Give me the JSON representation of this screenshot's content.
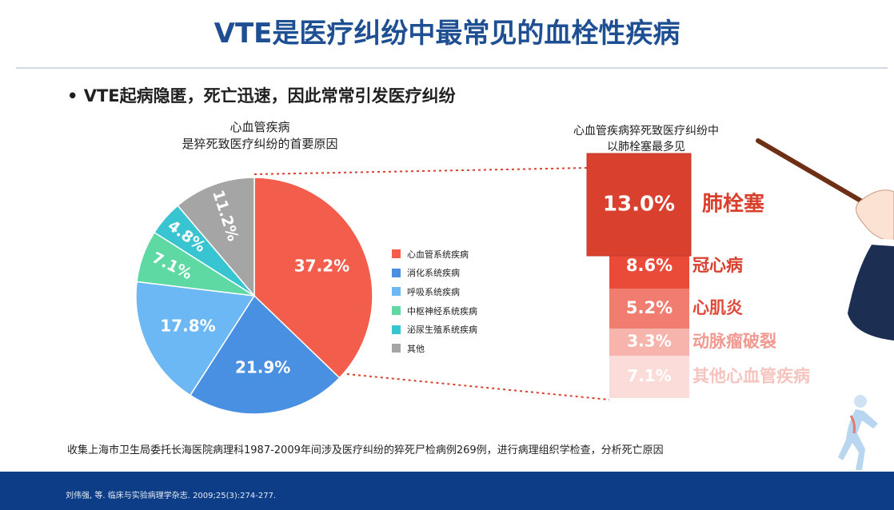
{
  "title": "VTE是医疗纠纷中最常见的血栓性疾病",
  "bullet": "VTE起病隐匿，死亡迅速，因此常常引发医疗纠纷",
  "pie_caption": {
    "line1": "心血管疾病",
    "line2": "是猝死致医疗纠纷的首要原因"
  },
  "right_caption": {
    "line1": "心血管疾病猝死致医疗纠纷中",
    "line2": "以肺栓塞最多见"
  },
  "footnote": "收集上海市卫生局委托长海医院病理科1987-2009年间涉及医疗纠纷的猝死尸检病例269例，进行病理组织学检查，分析死亡原因",
  "citation": "刘伟强, 等. 临床与实验病理学杂志. 2009;25(3):274-277.",
  "chart_data": [
    {
      "type": "pie",
      "title": "心血管疾病是猝死致医疗纠纷的首要原因",
      "categories": [
        "心血管系统疾病",
        "消化系统疾病",
        "呼吸系统疾病",
        "中枢神经系统疾病",
        "泌尿生殖系统疾病",
        "其他"
      ],
      "values": [
        37.2,
        21.9,
        17.8,
        7.1,
        4.8,
        11.2
      ],
      "labels": [
        "37.2%",
        "21.9%",
        "17.8%",
        "7.1%",
        "4.8%",
        "11.2%"
      ],
      "colors": [
        "#f25d4c",
        "#4a90e2",
        "#6cb8f5",
        "#5ed9a4",
        "#38c4d0",
        "#a5a5a5"
      ],
      "legend_position": "right"
    },
    {
      "type": "bar",
      "title": "心血管疾病猝死致医疗纠纷中以肺栓塞最多见",
      "categories": [
        "肺栓塞",
        "冠心病",
        "心肌炎",
        "动脉瘤破裂",
        "其他心血管疾病"
      ],
      "values": [
        13.0,
        8.6,
        5.2,
        3.3,
        7.1
      ],
      "labels": [
        "13.0%",
        "8.6%",
        "5.2%",
        "3.3%",
        "7.1%"
      ],
      "colors": [
        "#d9402e",
        "#ea4a38",
        "#f07d70",
        "#f7b4ad",
        "#fbdcd8"
      ],
      "text_colors": [
        "#d9402e",
        "#d9402e",
        "#e0483a",
        "#f09a91",
        "#f6c3be"
      ]
    }
  ]
}
